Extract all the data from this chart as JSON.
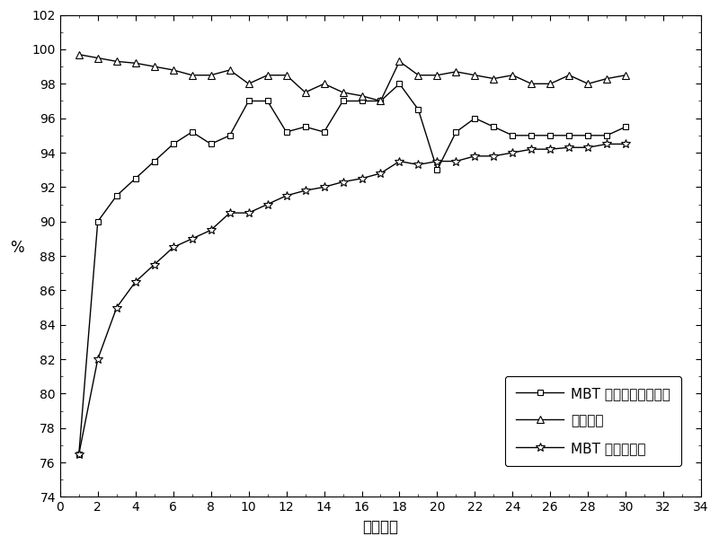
{
  "series1_label": "MBT 产品单次反应收率",
  "series2_label": "产品纯度",
  "series3_label": "MBT 产品总收率",
  "series1_x": [
    1,
    2,
    3,
    4,
    5,
    6,
    7,
    8,
    9,
    10,
    11,
    12,
    13,
    14,
    15,
    16,
    17,
    18,
    19,
    20,
    21,
    22,
    23,
    24,
    25,
    26,
    27,
    28,
    29,
    30
  ],
  "series1_y": [
    76.5,
    90.0,
    91.5,
    92.5,
    93.5,
    94.5,
    95.2,
    94.5,
    95.0,
    97.0,
    97.0,
    95.2,
    95.5,
    95.2,
    97.0,
    97.0,
    97.0,
    98.0,
    96.5,
    93.0,
    95.2,
    96.0,
    95.5,
    95.0,
    95.0,
    95.0,
    95.0,
    95.0,
    95.0,
    95.5
  ],
  "series2_x": [
    1,
    2,
    3,
    4,
    5,
    6,
    7,
    8,
    9,
    10,
    11,
    12,
    13,
    14,
    15,
    16,
    17,
    18,
    19,
    20,
    21,
    22,
    23,
    24,
    25,
    26,
    27,
    28,
    29,
    30
  ],
  "series2_y": [
    99.7,
    99.5,
    99.3,
    99.2,
    99.0,
    98.8,
    98.5,
    98.5,
    98.8,
    98.0,
    98.5,
    98.5,
    97.5,
    98.0,
    97.5,
    97.3,
    97.0,
    99.3,
    98.5,
    98.5,
    98.7,
    98.5,
    98.3,
    98.5,
    98.0,
    98.0,
    98.5,
    98.0,
    98.3,
    98.5
  ],
  "series3_x": [
    1,
    2,
    3,
    4,
    5,
    6,
    7,
    8,
    9,
    10,
    11,
    12,
    13,
    14,
    15,
    16,
    17,
    18,
    19,
    20,
    21,
    22,
    23,
    24,
    25,
    26,
    27,
    28,
    29,
    30
  ],
  "series3_y": [
    76.5,
    82.0,
    85.0,
    86.5,
    87.5,
    88.5,
    89.0,
    89.5,
    90.5,
    90.5,
    91.0,
    91.5,
    91.8,
    92.0,
    92.3,
    92.5,
    92.8,
    93.5,
    93.3,
    93.5,
    93.5,
    93.8,
    93.8,
    94.0,
    94.2,
    94.2,
    94.3,
    94.3,
    94.5,
    94.5
  ],
  "xlabel": "循环次数",
  "ylabel": "%",
  "xlim": [
    0,
    34
  ],
  "ylim": [
    74,
    102
  ],
  "xticks": [
    0,
    2,
    4,
    6,
    8,
    10,
    12,
    14,
    16,
    18,
    20,
    22,
    24,
    26,
    28,
    30,
    32,
    34
  ],
  "yticks": [
    74,
    76,
    78,
    80,
    82,
    84,
    86,
    88,
    90,
    92,
    94,
    96,
    98,
    100,
    102
  ],
  "color": "#000000",
  "bg_color": "#ffffff",
  "marker1": "s",
  "marker2": "^",
  "marker3": "*",
  "font_size": 12,
  "legend_fontsize": 11
}
